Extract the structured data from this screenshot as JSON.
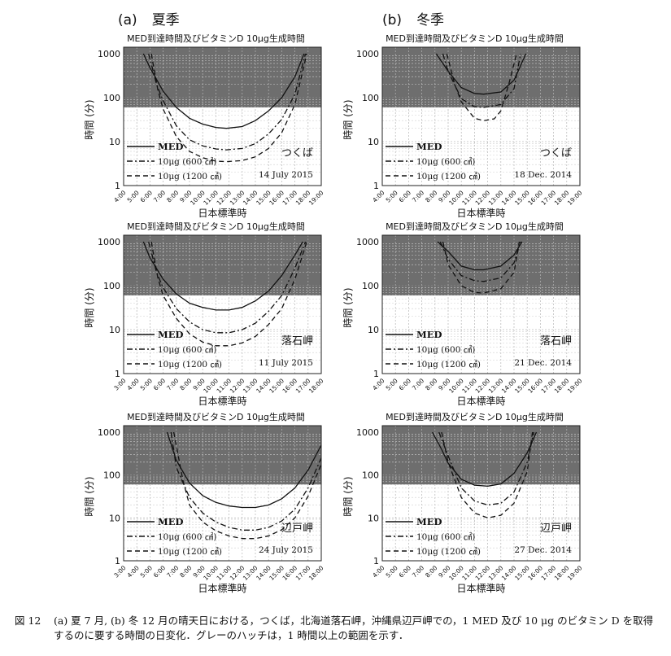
{
  "columns": [
    {
      "tag": "(a)",
      "label": "夏季"
    },
    {
      "tag": "(b)",
      "label": "冬季"
    }
  ],
  "caption": {
    "number": "図 12",
    "text": "(a) 夏 7 月, (b) 冬 12 月の晴天日における，つくば，北海道落石岬，沖縄県辺戸岬での，1 MED 及び 10 μg のビタミン D を取得するのに要する時間の日変化．グレーのハッチは，1 時間以上の範囲を示す．"
  },
  "colors": {
    "hatch": "#6e6e6e",
    "grid": "#b5b5b5",
    "line": "#111111"
  },
  "legend": [
    "MED",
    "10μg (600 ㎠)",
    "10μg (1200 ㎠)"
  ],
  "chart_data": [
    {
      "type": "line",
      "title": "MED到達時間及びビタミンD 10μg生成時間",
      "xlabel": "日本標準時",
      "ylabel": "時間 (分)",
      "location": "つくば",
      "date": "14 July 2015",
      "yscale": "log",
      "ylim": [
        1,
        1000
      ],
      "shade_above": 60,
      "yticks": [
        "1",
        "10",
        "100",
        "1000"
      ],
      "xticks": [
        "4:00",
        "5:00",
        "6:00",
        "7:00",
        "8:00",
        "9:00",
        "10:00",
        "11:00",
        "12:00",
        "13:00",
        "14:00",
        "15:00",
        "16:00",
        "17:00",
        "18:00",
        "19:00"
      ],
      "series": [
        {
          "name": "MED",
          "style": "solid",
          "x": [
            5.5,
            6,
            7,
            8,
            9,
            10,
            11,
            11.8,
            13,
            14,
            15,
            16,
            17,
            17.7
          ],
          "y": [
            1000,
            480,
            140,
            60,
            34,
            25,
            21,
            20,
            22,
            30,
            50,
            100,
            300,
            1000
          ]
        },
        {
          "name": "10μg (600 ㎠)",
          "style": "dashdot",
          "x": [
            5.9,
            6.5,
            7,
            8,
            9,
            10,
            11,
            11.8,
            13,
            14,
            15,
            16,
            17,
            17.8
          ],
          "y": [
            1000,
            200,
            85,
            23,
            11,
            8,
            6.8,
            6.5,
            7,
            9,
            15,
            32,
            120,
            1000
          ]
        },
        {
          "name": "10μg (1200 ㎠)",
          "style": "dashed",
          "x": [
            6.1,
            6.6,
            7,
            8,
            9,
            10,
            11,
            11.8,
            13,
            14,
            15,
            16,
            17,
            17.9
          ],
          "y": [
            1000,
            150,
            55,
            13,
            6,
            4.3,
            3.6,
            3.5,
            3.7,
            4.5,
            7,
            16,
            70,
            1000
          ]
        }
      ]
    },
    {
      "type": "line",
      "title": "MED到達時間及びビタミンD 10μg生成時間",
      "xlabel": "日本標準時",
      "ylabel": "時間 (分)",
      "location": "つくば",
      "date": "18 Dec. 2014",
      "yscale": "log",
      "ylim": [
        1,
        1000
      ],
      "shade_above": 60,
      "yticks": [
        "1",
        "10",
        "100",
        "1000"
      ],
      "xticks": [
        "4:00",
        "5:00",
        "6:00",
        "7:00",
        "8:00",
        "9:00",
        "10:00",
        "11:00",
        "12:00",
        "13:00",
        "14:00",
        "15:00",
        "16:00",
        "17:00",
        "18:00",
        "19:00"
      ],
      "series": [
        {
          "name": "MED",
          "style": "solid",
          "x": [
            8.1,
            9,
            10,
            11,
            11.7,
            13,
            14,
            14.9
          ],
          "y": [
            1000,
            400,
            170,
            125,
            120,
            135,
            250,
            1000
          ]
        },
        {
          "name": "10μg (600 ㎠)",
          "style": "dashdot",
          "x": [
            8.6,
            9,
            10,
            11,
            11.7,
            13,
            14,
            14.5
          ],
          "y": [
            1000,
            400,
            95,
            62,
            60,
            70,
            160,
            1000
          ]
        },
        {
          "name": "10μg (1200 ㎠)",
          "style": "dashed",
          "x": [
            8.9,
            9.5,
            10,
            11,
            11.7,
            12.5,
            13,
            13.6,
            14.2
          ],
          "y": [
            1000,
            200,
            80,
            34,
            30,
            33,
            50,
            200,
            1000
          ]
        }
      ]
    },
    {
      "type": "line",
      "title": "MED到達時間及びビタミンD 10μg生成時間",
      "xlabel": "日本標準時",
      "ylabel": "時間 (分)",
      "location": "落石岬",
      "date": "11 July 2015",
      "yscale": "log",
      "ylim": [
        1,
        1000
      ],
      "shade_above": 60,
      "yticks": [
        "1",
        "10",
        "100",
        "1000"
      ],
      "xticks": [
        "3:00",
        "4:00",
        "5:00",
        "6:00",
        "7:00",
        "8:00",
        "9:00",
        "10:00",
        "11:00",
        "12:00",
        "13:00",
        "14:00",
        "15:00",
        "16:00",
        "17:00",
        "18:00"
      ],
      "series": [
        {
          "name": "MED",
          "style": "solid",
          "x": [
            4.5,
            5,
            6,
            7,
            8,
            9,
            10,
            11,
            12,
            13,
            14,
            15,
            16,
            16.6
          ],
          "y": [
            1000,
            430,
            140,
            65,
            40,
            32,
            28,
            28,
            32,
            45,
            75,
            170,
            500,
            1000
          ]
        },
        {
          "name": "10μg (600 ㎠)",
          "style": "dashdot",
          "x": [
            4.9,
            5.5,
            6,
            7,
            8,
            9,
            10,
            11,
            12,
            13,
            14,
            15,
            16,
            16.8
          ],
          "y": [
            1000,
            200,
            90,
            30,
            15,
            10,
            8.5,
            8.5,
            10,
            14,
            26,
            60,
            250,
            1000
          ]
        },
        {
          "name": "10μg (1200 ㎠)",
          "style": "dashed",
          "x": [
            5.1,
            5.6,
            6,
            7,
            8,
            9,
            10,
            11,
            12,
            13,
            14,
            15,
            16,
            16.9
          ],
          "y": [
            1000,
            150,
            60,
            18,
            8,
            5.2,
            4.3,
            4.3,
            5,
            7,
            13,
            30,
            140,
            1000
          ]
        }
      ]
    },
    {
      "type": "line",
      "title": "MED到達時間及びビタミンD 10μg生成時間",
      "xlabel": "日本標準時",
      "ylabel": "時間 (分)",
      "location": "落石岬",
      "date": "21 Dec. 2014",
      "yscale": "log",
      "ylim": [
        1,
        1000
      ],
      "shade_above": 60,
      "yticks": [
        "1",
        "10",
        "100",
        "1000"
      ],
      "xticks": [
        "4:00",
        "5:00",
        "6:00",
        "7:00",
        "8:00",
        "9:00",
        "10:00",
        "11:00",
        "12:00",
        "13:00",
        "14:00",
        "15:00",
        "16:00",
        "17:00",
        "18:00",
        "19:00"
      ],
      "series": [
        {
          "name": "MED",
          "style": "solid",
          "x": [
            8.2,
            9,
            10,
            11,
            11.7,
            13,
            14,
            14.6
          ],
          "y": [
            1000,
            600,
            280,
            230,
            230,
            280,
            500,
            1000
          ]
        },
        {
          "name": "10μg (600 ㎠)",
          "style": "dashdot",
          "x": [
            8.4,
            9,
            10,
            11,
            11.7,
            13,
            14,
            14.5
          ],
          "y": [
            1000,
            400,
            170,
            130,
            125,
            150,
            330,
            1000
          ]
        },
        {
          "name": "10μg (1200 ㎠)",
          "style": "dashed",
          "x": [
            8.6,
            9,
            10,
            11,
            11.7,
            13,
            14,
            14.4
          ],
          "y": [
            1000,
            300,
            100,
            70,
            68,
            85,
            200,
            1000
          ]
        }
      ]
    },
    {
      "type": "line",
      "title": "MED到達時間及びビタミンD 10μg生成時間",
      "xlabel": "日本標準時",
      "ylabel": "時間 (分)",
      "location": "辺戸岬",
      "date": "24 July 2015",
      "yscale": "log",
      "ylim": [
        1,
        1000
      ],
      "shade_above": 60,
      "yticks": [
        "1",
        "10",
        "100",
        "1000"
      ],
      "xticks": [
        "3:00",
        "4:00",
        "5:00",
        "6:00",
        "7:00",
        "8:00",
        "9:00",
        "10:00",
        "11:00",
        "12:00",
        "13:00",
        "14:00",
        "15:00",
        "16:00",
        "17:00",
        "18:00"
      ],
      "series": [
        {
          "name": "MED",
          "style": "solid",
          "x": [
            6.3,
            7,
            8,
            9,
            10,
            11,
            12,
            13,
            14,
            15,
            16,
            17,
            18,
            18.6
          ],
          "y": [
            1000,
            220,
            65,
            33,
            23,
            19,
            17.5,
            17.5,
            20,
            28,
            50,
            130,
            500,
            1000
          ]
        },
        {
          "name": "10μg (600 ㎠)",
          "style": "dashdot",
          "x": [
            6.6,
            7,
            8,
            9,
            10,
            11,
            12,
            13,
            14,
            15,
            16,
            17,
            18,
            18.8
          ],
          "y": [
            1000,
            150,
            30,
            13,
            8,
            6,
            5.2,
            5.2,
            6,
            8.5,
            16,
            50,
            250,
            1000
          ]
        },
        {
          "name": "10μg (1200 ㎠)",
          "style": "dashed",
          "x": [
            6.8,
            7.5,
            8,
            9,
            10,
            11,
            12,
            13,
            14,
            15,
            16,
            17,
            18,
            18.9
          ],
          "y": [
            1000,
            75,
            20,
            8,
            5,
            3.8,
            3.3,
            3.3,
            3.8,
            5.3,
            10,
            32,
            180,
            1000
          ]
        }
      ]
    },
    {
      "type": "line",
      "title": "MED到達時間及びビタミンD 10μg生成時間",
      "xlabel": "日本標準時",
      "ylabel": "時間 (分)",
      "location": "辺戸岬",
      "date": "27 Dec. 2014",
      "yscale": "log",
      "ylim": [
        1,
        1000
      ],
      "shade_above": 60,
      "yticks": [
        "1",
        "10",
        "100",
        "1000"
      ],
      "xticks": [
        "4:00",
        "5:00",
        "6:00",
        "7:00",
        "8:00",
        "9:00",
        "10:00",
        "11:00",
        "12:00",
        "13:00",
        "14:00",
        "15:00",
        "16:00",
        "17:00",
        "18:00",
        "19:00"
      ],
      "series": [
        {
          "name": "MED",
          "style": "solid",
          "x": [
            7.8,
            8.5,
            9,
            10,
            11,
            12,
            13,
            14,
            15,
            15.7
          ],
          "y": [
            1000,
            400,
            190,
            80,
            58,
            55,
            62,
            110,
            330,
            1000
          ]
        },
        {
          "name": "10μg (600 ㎠)",
          "style": "dashdot",
          "x": [
            8.3,
            9,
            10,
            11,
            12,
            13,
            14,
            15,
            15.5
          ],
          "y": [
            1000,
            280,
            50,
            25,
            20,
            22,
            40,
            200,
            1000
          ]
        },
        {
          "name": "10μg (1200 ㎠)",
          "style": "dashed",
          "x": [
            8.5,
            9,
            10,
            11,
            12,
            13,
            14,
            15,
            15.4
          ],
          "y": [
            1000,
            200,
            30,
            13,
            10,
            11.5,
            22,
            120,
            1000
          ]
        }
      ]
    }
  ]
}
